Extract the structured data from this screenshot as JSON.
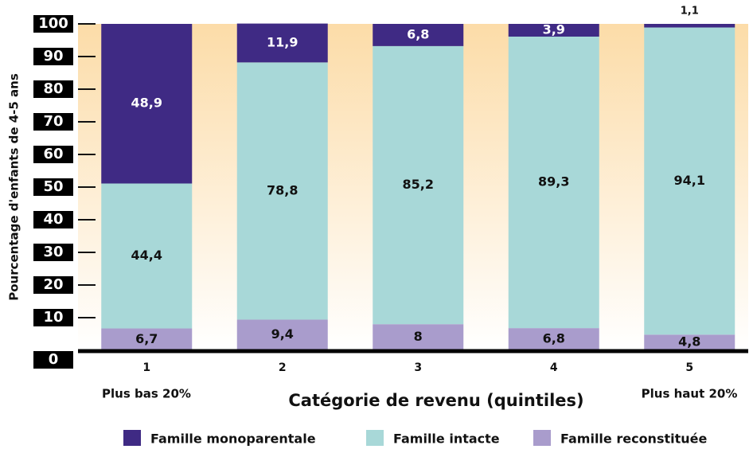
{
  "chart_data": {
    "type": "stacked_bar",
    "categories": [
      "1",
      "2",
      "3",
      "4",
      "5"
    ],
    "series": [
      {
        "name": "Famille reconstituée",
        "color": "#a99ccc",
        "values": [
          6.7,
          9.4,
          8,
          6.8,
          4.8
        ],
        "value_labels": [
          "6,7",
          "9,4",
          "8",
          "6,8",
          "4,8"
        ]
      },
      {
        "name": "Famille intacte",
        "color": "#a8d8d8",
        "values": [
          44.4,
          78.8,
          85.2,
          89.3,
          94.1
        ],
        "value_labels": [
          "44,4",
          "78,8",
          "85,2",
          "89,3",
          "94,1"
        ]
      },
      {
        "name": "Famille monoparentale",
        "color": "#3f2a84",
        "values": [
          48.9,
          11.9,
          6.8,
          3.9,
          1.1
        ],
        "value_labels": [
          "48,9",
          "11,9",
          "6,8",
          "3,9",
          "1,1"
        ]
      }
    ],
    "legend_order": [
      2,
      1,
      0
    ],
    "ylim": [
      0,
      100
    ],
    "yticks": [
      0,
      10,
      20,
      30,
      40,
      50,
      60,
      70,
      80,
      90,
      100
    ],
    "y_label": "Pourcentage d'enfants de 4-5 ans",
    "x_label": "Catégorie de revenu (quintiles)",
    "annotations": [
      "Plus bas 20%",
      "Plus haut 20%"
    ]
  }
}
